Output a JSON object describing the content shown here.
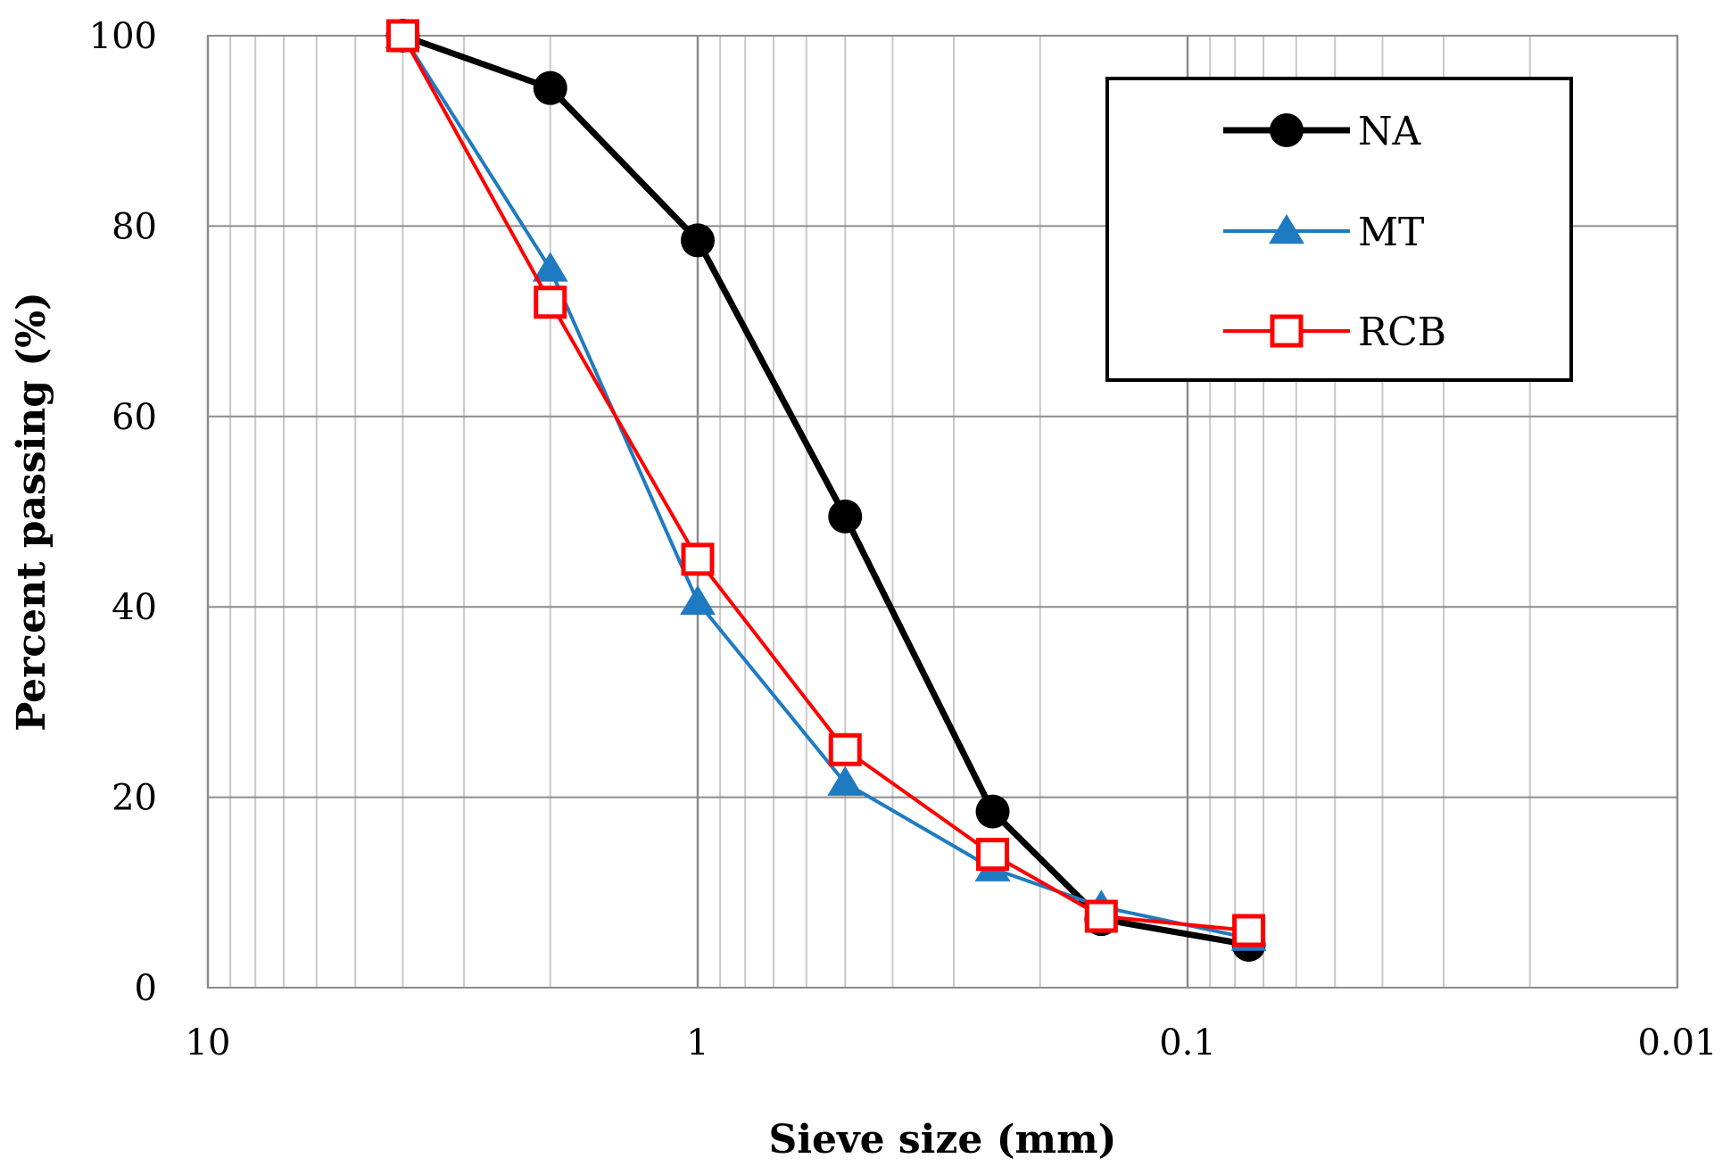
{
  "chart_data": {
    "type": "line",
    "title": "",
    "xlabel": "Sieve size (mm)",
    "ylabel": "Percent passing (%)",
    "x_scale": "log",
    "x_reversed": true,
    "xlim": [
      10,
      0.01
    ],
    "ylim": [
      0,
      100
    ],
    "x_ticks": [
      10,
      1,
      0.1,
      0.01
    ],
    "x_tick_labels": [
      "10",
      "1",
      "0.1",
      "0.01"
    ],
    "y_ticks": [
      0,
      20,
      40,
      60,
      80,
      100
    ],
    "y_tick_labels": [
      "0",
      "20",
      "40",
      "60",
      "80",
      "100"
    ],
    "grid": true,
    "legend_position": "top-right",
    "x": [
      4,
      2,
      1,
      0.5,
      0.25,
      0.15,
      0.075
    ],
    "series": [
      {
        "name": "NA",
        "color": "#000000",
        "marker": "circle",
        "values": [
          100,
          94.5,
          78.5,
          49.5,
          18.5,
          7.2,
          4.5
        ]
      },
      {
        "name": "MT",
        "color": "#1f7bc1",
        "marker": "triangle",
        "values": [
          100,
          75.5,
          40.5,
          21.5,
          12.5,
          8.5,
          5.2
        ]
      },
      {
        "name": "RCB",
        "color": "#ff0000",
        "marker": "square",
        "values": [
          100,
          72,
          45,
          25,
          14,
          7.5,
          6
        ]
      }
    ]
  }
}
